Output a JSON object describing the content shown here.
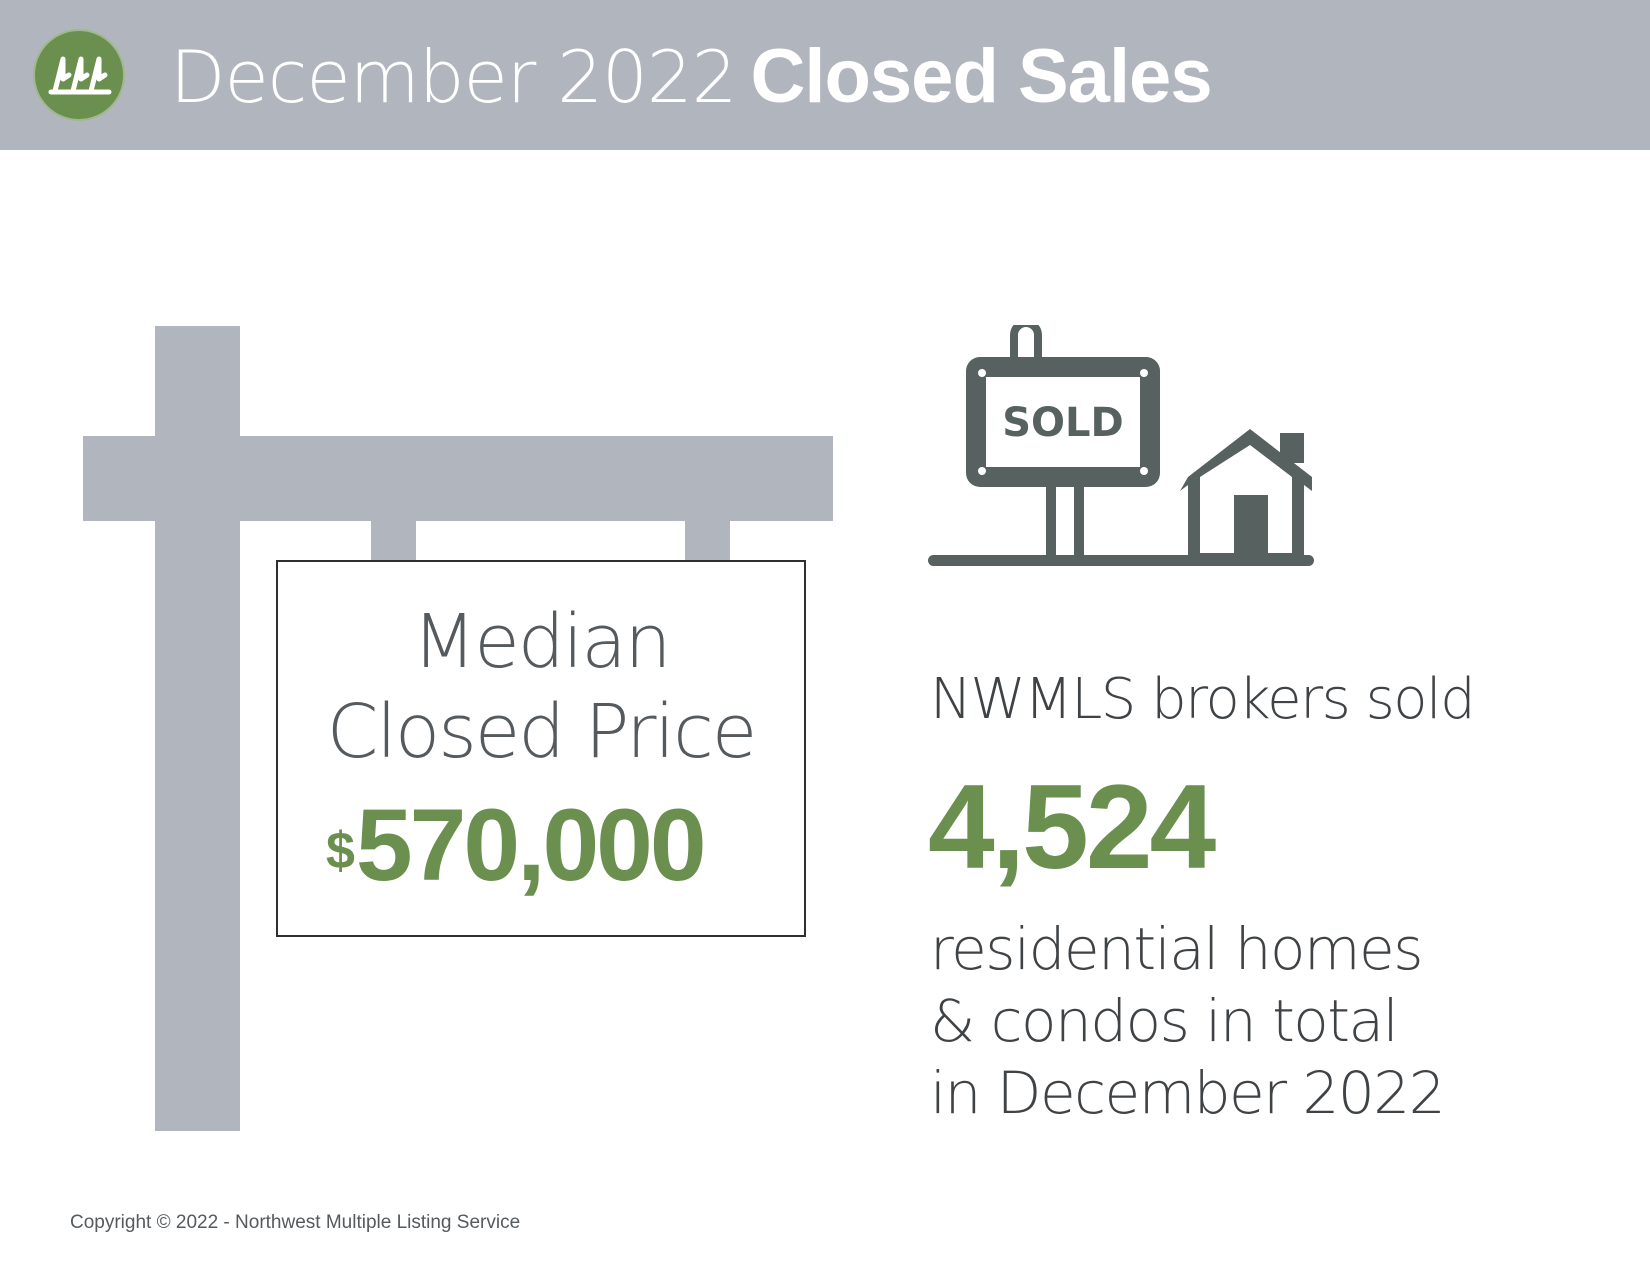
{
  "header": {
    "title_light": "December 2022",
    "title_bold": "Closed Sales",
    "logo_icon": "trees-logo-icon",
    "background": "#b1b5be"
  },
  "median": {
    "line1": "Median",
    "line2": "Closed Price",
    "currency": "$",
    "value": "570,000"
  },
  "sold_icon": {
    "icon": "sold-sign-house-icon",
    "sign_text": "SOLD"
  },
  "summary": {
    "intro": "NWMLS brokers sold",
    "count": "4,524",
    "desc_lines": [
      "residential homes",
      "& condos in total",
      "in December 2022"
    ]
  },
  "footer": {
    "copyright": "Copyright © 2022 - Northwest Multiple Listing Service"
  },
  "colors": {
    "accent_green": "#6a8f4f",
    "gray": "#b1b5be",
    "icon_dark": "#566160"
  }
}
